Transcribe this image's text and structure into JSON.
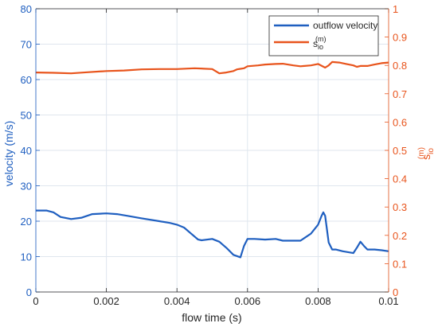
{
  "chart_data": {
    "type": "line",
    "title": "",
    "xlabel": "flow time (s)",
    "xlim": [
      0,
      0.01
    ],
    "x_ticks": [
      "0",
      "0.002",
      "0.004",
      "0.006",
      "0.008",
      "0.01"
    ],
    "x_tick_values": [
      0,
      0.002,
      0.004,
      0.006,
      0.008,
      0.01
    ],
    "grid": true,
    "legend_position": "top-right",
    "y_left": {
      "label": "velocity (m/s)",
      "ylim": [
        0,
        80
      ],
      "ticks": [
        "0",
        "10",
        "20",
        "30",
        "40",
        "50",
        "60",
        "70",
        "80"
      ],
      "tick_values": [
        0,
        10,
        20,
        30,
        40,
        50,
        60,
        70,
        80
      ],
      "color": "#1f5fc0"
    },
    "y_right": {
      "label_main": "s",
      "label_sub": "io",
      "label_sup": "(m)",
      "ylim": [
        0,
        1
      ],
      "ticks": [
        "0",
        "0.1",
        "0.2",
        "0.3",
        "0.4",
        "0.5",
        "0.6",
        "0.7",
        "0.8",
        "0.9",
        "1"
      ],
      "tick_values": [
        0,
        0.1,
        0.2,
        0.3,
        0.4,
        0.5,
        0.6,
        0.7,
        0.8,
        0.9,
        1
      ],
      "color": "#e8541c"
    },
    "series": [
      {
        "name": "outflow velocity",
        "axis": "left",
        "color": "#1f5fc0",
        "x": [
          0,
          0.0003,
          0.0005,
          0.0007,
          0.001,
          0.0013,
          0.0016,
          0.002,
          0.0023,
          0.0026,
          0.003,
          0.0035,
          0.0038,
          0.004,
          0.0042,
          0.0044,
          0.0046,
          0.0047,
          0.005,
          0.0052,
          0.0054,
          0.0056,
          0.0058,
          0.0059,
          0.006,
          0.0062,
          0.0065,
          0.0068,
          0.007,
          0.0072,
          0.0075,
          0.0078,
          0.008,
          0.0081,
          0.00815,
          0.0082,
          0.0083,
          0.0084,
          0.0085,
          0.0087,
          0.009,
          0.0091,
          0.0092,
          0.0093,
          0.0094,
          0.0096,
          0.0098,
          0.01
        ],
        "y": [
          23,
          23,
          22.5,
          21.2,
          20.6,
          21,
          22,
          22.2,
          22,
          21.5,
          20.8,
          20,
          19.5,
          19,
          18.2,
          16.5,
          14.8,
          14.6,
          15,
          14.2,
          12.5,
          10.5,
          9.8,
          13,
          15,
          15,
          14.8,
          15,
          14.5,
          14.5,
          14.5,
          16.5,
          19,
          21.5,
          22.5,
          21.5,
          14,
          12,
          12,
          11.5,
          11,
          12.5,
          14.2,
          13,
          12,
          12,
          11.8,
          11.5
        ]
      },
      {
        "name": "s_io^(m)",
        "axis": "right",
        "color": "#e8541c",
        "x": [
          0,
          0.0005,
          0.001,
          0.0015,
          0.002,
          0.0025,
          0.003,
          0.0035,
          0.004,
          0.0045,
          0.005,
          0.0052,
          0.0054,
          0.0056,
          0.0057,
          0.0058,
          0.0059,
          0.006,
          0.0063,
          0.0065,
          0.0068,
          0.007,
          0.0073,
          0.0075,
          0.0078,
          0.008,
          0.0082,
          0.0083,
          0.0084,
          0.0086,
          0.0088,
          0.009,
          0.0091,
          0.0092,
          0.0094,
          0.0096,
          0.0098,
          0.01
        ],
        "y": [
          0.775,
          0.774,
          0.772,
          0.776,
          0.78,
          0.782,
          0.786,
          0.787,
          0.787,
          0.79,
          0.787,
          0.772,
          0.775,
          0.78,
          0.786,
          0.788,
          0.79,
          0.797,
          0.8,
          0.803,
          0.805,
          0.806,
          0.8,
          0.797,
          0.8,
          0.805,
          0.792,
          0.8,
          0.812,
          0.81,
          0.805,
          0.8,
          0.795,
          0.798,
          0.798,
          0.803,
          0.808,
          0.81
        ]
      }
    ],
    "legend": [
      {
        "label": "outflow velocity",
        "color": "#1f5fc0"
      },
      {
        "label_main": "s",
        "label_sub": "io",
        "label_sup": "(m)",
        "color": "#e8541c"
      }
    ]
  }
}
